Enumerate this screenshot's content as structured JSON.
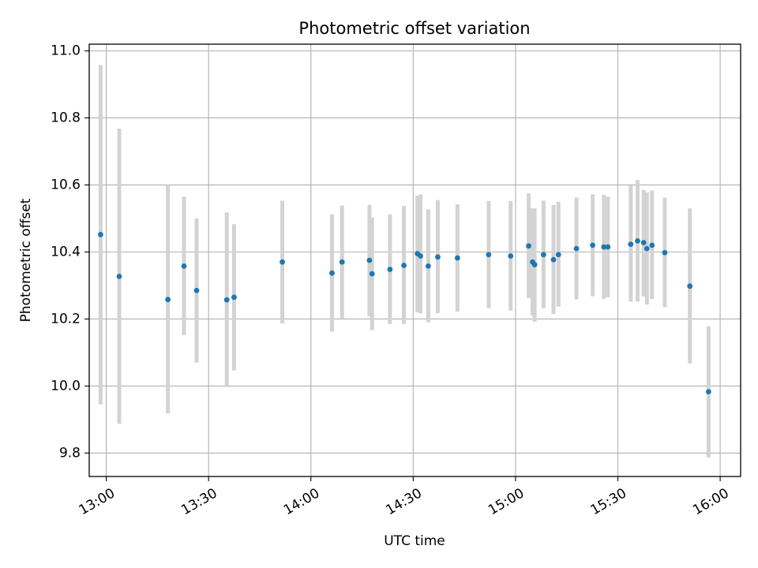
{
  "chart_data": {
    "type": "scatter",
    "title": "Photometric offset variation",
    "xlabel": "UTC time",
    "ylabel": "Photometric offset",
    "x_unit": "UTC time (HH:MM)",
    "xlim": [
      "12:55",
      "16:06"
    ],
    "ylim": [
      9.73,
      11.02
    ],
    "x_ticks": [
      "13:00",
      "13:30",
      "14:00",
      "14:30",
      "15:00",
      "15:30",
      "16:00"
    ],
    "y_ticks": [
      "9.8",
      "10.0",
      "10.2",
      "10.4",
      "10.6",
      "10.8",
      "11.0"
    ],
    "grid": true,
    "marker_color": "#1f77b4",
    "errorbar_color": "#d3d3d3",
    "points": [
      {
        "t": "12:58:20",
        "y": 10.452,
        "lo": 9.945,
        "hi": 10.958
      },
      {
        "t": "13:03:48",
        "y": 10.327,
        "lo": 9.887,
        "hi": 10.768
      },
      {
        "t": "13:18:04",
        "y": 10.258,
        "lo": 9.918,
        "hi": 10.6
      },
      {
        "t": "13:22:47",
        "y": 10.358,
        "lo": 10.152,
        "hi": 10.565
      },
      {
        "t": "13:26:29",
        "y": 10.285,
        "lo": 10.07,
        "hi": 10.5
      },
      {
        "t": "13:35:20",
        "y": 10.257,
        "lo": 9.997,
        "hi": 10.518
      },
      {
        "t": "13:37:28",
        "y": 10.265,
        "lo": 10.047,
        "hi": 10.483
      },
      {
        "t": "13:51:37",
        "y": 10.37,
        "lo": 10.187,
        "hi": 10.553
      },
      {
        "t": "14:06:11",
        "y": 10.337,
        "lo": 10.162,
        "hi": 10.512
      },
      {
        "t": "14:09:08",
        "y": 10.37,
        "lo": 10.202,
        "hi": 10.538
      },
      {
        "t": "14:17:10",
        "y": 10.375,
        "lo": 10.208,
        "hi": 10.54
      },
      {
        "t": "14:17:56",
        "y": 10.335,
        "lo": 10.167,
        "hi": 10.503
      },
      {
        "t": "14:23:11",
        "y": 10.348,
        "lo": 10.185,
        "hi": 10.512
      },
      {
        "t": "14:27:16",
        "y": 10.36,
        "lo": 10.185,
        "hi": 10.537
      },
      {
        "t": "14:31:14",
        "y": 10.395,
        "lo": 10.22,
        "hi": 10.568
      },
      {
        "t": "14:32:08",
        "y": 10.388,
        "lo": 10.217,
        "hi": 10.572
      },
      {
        "t": "14:34:24",
        "y": 10.358,
        "lo": 10.19,
        "hi": 10.527
      },
      {
        "t": "14:37:12",
        "y": 10.385,
        "lo": 10.217,
        "hi": 10.555
      },
      {
        "t": "14:42:58",
        "y": 10.382,
        "lo": 10.222,
        "hi": 10.542
      },
      {
        "t": "14:52:07",
        "y": 10.392,
        "lo": 10.232,
        "hi": 10.552
      },
      {
        "t": "14:58:34",
        "y": 10.388,
        "lo": 10.225,
        "hi": 10.552
      },
      {
        "t": "15:03:51",
        "y": 10.418,
        "lo": 10.262,
        "hi": 10.575
      },
      {
        "t": "15:05:00",
        "y": 10.37,
        "lo": 10.21,
        "hi": 10.53
      },
      {
        "t": "15:05:36",
        "y": 10.362,
        "lo": 10.192,
        "hi": 10.53
      },
      {
        "t": "15:08:12",
        "y": 10.392,
        "lo": 10.232,
        "hi": 10.553
      },
      {
        "t": "15:11:08",
        "y": 10.377,
        "lo": 10.215,
        "hi": 10.54
      },
      {
        "t": "15:12:35",
        "y": 10.392,
        "lo": 10.237,
        "hi": 10.55
      },
      {
        "t": "15:17:52",
        "y": 10.41,
        "lo": 10.258,
        "hi": 10.562
      },
      {
        "t": "15:22:37",
        "y": 10.42,
        "lo": 10.268,
        "hi": 10.572
      },
      {
        "t": "15:25:54",
        "y": 10.415,
        "lo": 10.26,
        "hi": 10.57
      },
      {
        "t": "15:27:04",
        "y": 10.415,
        "lo": 10.265,
        "hi": 10.565
      },
      {
        "t": "15:33:47",
        "y": 10.423,
        "lo": 10.252,
        "hi": 10.598
      },
      {
        "t": "15:35:47",
        "y": 10.433,
        "lo": 10.252,
        "hi": 10.615
      },
      {
        "t": "15:37:34",
        "y": 10.428,
        "lo": 10.268,
        "hi": 10.585
      },
      {
        "t": "15:38:31",
        "y": 10.41,
        "lo": 10.243,
        "hi": 10.578
      },
      {
        "t": "15:40:01",
        "y": 10.42,
        "lo": 10.26,
        "hi": 10.583
      },
      {
        "t": "15:43:46",
        "y": 10.398,
        "lo": 10.235,
        "hi": 10.562
      },
      {
        "t": "15:51:07",
        "y": 10.298,
        "lo": 10.067,
        "hi": 10.53
      },
      {
        "t": "15:56:36",
        "y": 9.983,
        "lo": 9.787,
        "hi": 10.178
      }
    ]
  }
}
